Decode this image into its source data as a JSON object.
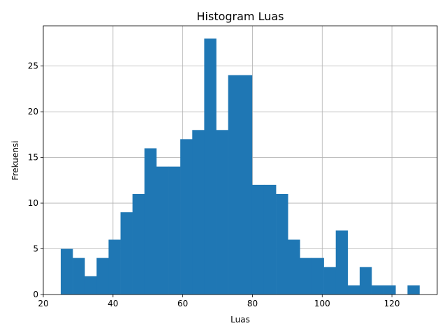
{
  "chart_data": {
    "type": "bar",
    "title": "Histogram Luas",
    "xlabel": "Luas",
    "ylabel": "Frekuensi",
    "xlim": [
      20,
      133
    ],
    "ylim": [
      0,
      29.4
    ],
    "xticks": [
      20,
      40,
      60,
      80,
      100,
      120
    ],
    "yticks": [
      0,
      5,
      10,
      15,
      20,
      25
    ],
    "grid": true,
    "bin_edges": [
      25,
      28.43,
      31.86,
      35.29,
      38.72,
      42.15,
      45.58,
      49.01,
      52.44,
      55.87,
      59.3,
      62.73,
      66.16,
      69.59,
      73.02,
      76.45,
      79.88,
      83.31,
      86.74,
      90.17,
      93.6,
      97.03,
      100.46,
      103.89,
      107.32,
      110.75,
      114.18,
      117.61,
      121.04,
      124.47,
      127.9
    ],
    "values": [
      5,
      4,
      2,
      4,
      6,
      9,
      11,
      16,
      14,
      14,
      17,
      18,
      28,
      18,
      24,
      24,
      12,
      12,
      11,
      6,
      4,
      4,
      3,
      7,
      1,
      3,
      1,
      1,
      0,
      1
    ],
    "color": "#1f77b4"
  }
}
